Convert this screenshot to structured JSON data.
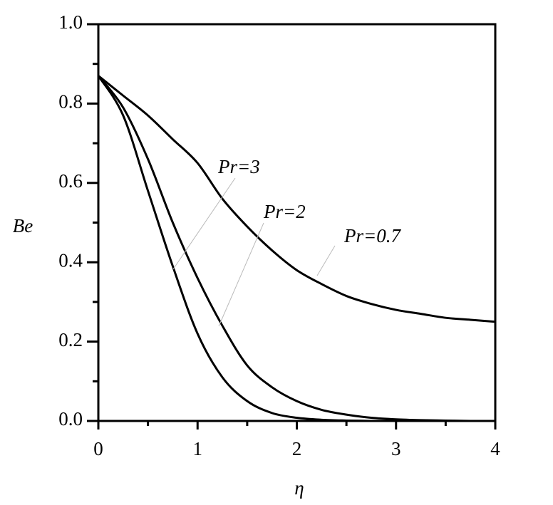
{
  "chart_data": {
    "type": "line",
    "x_label": "η",
    "y_label": "Be",
    "x": [
      0,
      0.25,
      0.5,
      0.75,
      1.0,
      1.25,
      1.5,
      1.75,
      2.0,
      2.25,
      2.5,
      2.75,
      3.0,
      3.25,
      3.5,
      3.75,
      4.0
    ],
    "series": [
      {
        "name": "Pr=0.7",
        "color": "#000000",
        "values": [
          0.87,
          0.82,
          0.77,
          0.71,
          0.65,
          0.56,
          0.49,
          0.43,
          0.38,
          0.345,
          0.315,
          0.295,
          0.28,
          0.27,
          0.26,
          0.255,
          0.25
        ]
      },
      {
        "name": "Pr=2",
        "color": "#000000",
        "values": [
          0.87,
          0.79,
          0.66,
          0.5,
          0.36,
          0.24,
          0.14,
          0.085,
          0.05,
          0.028,
          0.016,
          0.008,
          0.004,
          0.002,
          0.001,
          0,
          0
        ]
      },
      {
        "name": "Pr=3",
        "color": "#000000",
        "values": [
          0.87,
          0.77,
          0.58,
          0.39,
          0.22,
          0.11,
          0.05,
          0.02,
          0.008,
          0.003,
          0.001,
          0,
          0,
          0,
          0,
          0,
          0
        ]
      }
    ],
    "xlim": [
      0,
      4
    ],
    "ylim": [
      0,
      1
    ],
    "xticks": [
      0,
      1,
      2,
      3,
      4
    ],
    "yticks": [
      {
        "value": 0,
        "label": "0.0"
      },
      0.2,
      0.4,
      0.6,
      0.8,
      {
        "value": 1,
        "label": "1.0"
      }
    ]
  }
}
